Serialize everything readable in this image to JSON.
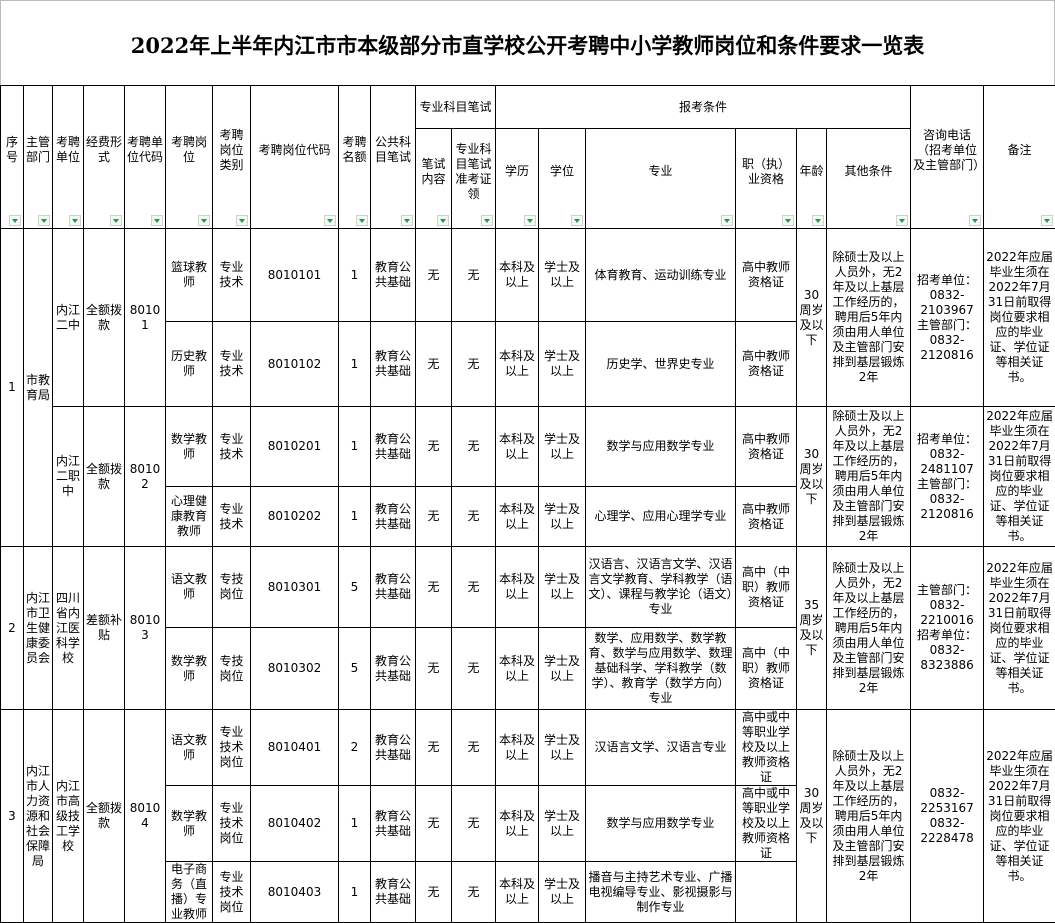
{
  "title": "2022年上半年内江市市本级部分市直学校公开考聘中小学教师岗位和条件要求一览表",
  "headers": {
    "seq": "序号",
    "dept": "主管部门",
    "unit": "考聘单位",
    "funding": "经费形式",
    "unit_code": "考聘单位代码",
    "position": "考聘岗位",
    "category": "考聘岗位类别",
    "position_code": "考聘岗位代码",
    "count": "考聘名额",
    "public_exam": "公共科目笔试",
    "prof_exam": "专业科目笔试",
    "exam_content": "笔试内容",
    "admission": "专业科目笔试准考证领",
    "conditions": "报考条件",
    "education": "学历",
    "degree": "学位",
    "major": "专业",
    "qualification": "职（执）业资格",
    "age": "年龄",
    "other": "其他条件",
    "phone": "咨询电话（招考单位及主管部门）",
    "note": "备注"
  },
  "filter_icon": "dropdown-filter-triangle",
  "accent_color": "#1a9c4a",
  "groups": [
    {
      "seq": "1",
      "dept": "市教育局",
      "units": [
        {
          "unit": "内江二中",
          "funding": "全额拨款",
          "code": "80101",
          "age": "30周岁及以下",
          "other": "除硕士及以上人员外，无2年及以上基层工作经历的，聘用后5年内须由用人单位及主管部门安排到基层锻炼2年",
          "phone": "招考单位：\n0832-\n2103967\n主管部门：\n0832-\n2120816",
          "note": "2022年应届毕业生须在2022年7月31日前取得岗位要求相应的毕业证、学位证等相关证书。",
          "positions": [
            {
              "name": "篮球教师",
              "category": "专业技术",
              "code": "8010101",
              "count": "1",
              "public_exam": "教育公共基础",
              "exam_content": "无",
              "admission": "无",
              "education": "本科及以上",
              "degree": "学士及以上",
              "major": "体育教育、运动训练专业",
              "qualification": "高中教师资格证"
            },
            {
              "name": "历史教师",
              "category": "专业技术",
              "code": "8010102",
              "count": "1",
              "public_exam": "教育公共基础",
              "exam_content": "无",
              "admission": "无",
              "education": "本科及以上",
              "degree": "学士及以上",
              "major": "历史学、世界史专业",
              "qualification": "高中教师资格证"
            }
          ]
        },
        {
          "unit": "内江二职中",
          "funding": "全额拨款",
          "code": "80102",
          "age": "30周岁及以下",
          "other": "除硕士及以上人员外，无2年及以上基层工作经历的，聘用后5年内须由用人单位及主管部门安排到基层锻炼2年",
          "phone": "招考单位：\n0832-\n2481107\n主管部门：\n0832-\n2120816",
          "note": "2022年应届毕业生须在2022年7月31日前取得岗位要求相应的毕业证、学位证等相关证书。",
          "positions": [
            {
              "name": "数学教师",
              "category": "专业技术",
              "code": "8010201",
              "count": "1",
              "public_exam": "教育公共基础",
              "exam_content": "无",
              "admission": "无",
              "education": "本科及以上",
              "degree": "学士及以上",
              "major": "数学与应用数学专业",
              "qualification": "高中教师资格证"
            },
            {
              "name": "心理健康教育教师",
              "category": "专业技术",
              "code": "8010202",
              "count": "1",
              "public_exam": "教育公共基础",
              "exam_content": "无",
              "admission": "无",
              "education": "本科及以上",
              "degree": "学士及以上",
              "major": "心理学、应用心理学专业",
              "qualification": "高中教师资格证"
            }
          ]
        }
      ]
    },
    {
      "seq": "2",
      "dept": "内江市卫生健康委员会",
      "units": [
        {
          "unit": "四川省内江医科学校",
          "funding": "差额补贴",
          "code": "80103",
          "age": "35周岁及以下",
          "other": "除硕士及以上人员外，无2年及以上基层工作经历的，聘用后5年内须由用人单位及主管部门安排到基层锻炼2年",
          "phone": "主管部门：\n0832-\n2210016\n招考单位：\n0832-\n8323886",
          "note": "2022年应届毕业生须在2022年7月31日前取得岗位要求相应的毕业证、学位证等相关证书。",
          "positions": [
            {
              "name": "语文教师",
              "category": "专技岗位",
              "code": "8010301",
              "count": "5",
              "public_exam": "教育公共基础",
              "exam_content": "无",
              "admission": "无",
              "education": "本科及以上",
              "degree": "学士及以上",
              "major": "汉语言、汉语言文学、汉语言文学教育、学科教学（语文）、课程与教学论（语文）专业",
              "qualification": "高中（中职）教师资格证"
            },
            {
              "name": "数学教师",
              "category": "专技岗位",
              "code": "8010302",
              "count": "5",
              "public_exam": "教育公共基础",
              "exam_content": "无",
              "admission": "无",
              "education": "本科及以上",
              "degree": "学士及以上",
              "major": "数学、应用数学、数学教育、数学与应用数学、数理基础科学、学科教学（数学）、教育学（数学方向）专业",
              "qualification": "高中（中职）教师资格证"
            }
          ]
        }
      ]
    },
    {
      "seq": "3",
      "dept": "内江市人力资源和社会保障局",
      "units": [
        {
          "unit": "内江市高级技工学校",
          "funding": "全额拨款",
          "code": "80104",
          "age": "30周岁及以下",
          "other": "除硕士及以上人员外，无2年及以上基层工作经历的，聘用后5年内须由用人单位及主管部门安排到基层锻炼2年",
          "phone": "0832-\n2253167\n0832-\n2228478",
          "note": "2022年应届毕业生须在2022年7月31日前取得岗位要求相应的毕业证、学位证等相关证书。",
          "positions": [
            {
              "name": "语文教师",
              "category": "专业技术岗位",
              "code": "8010401",
              "count": "2",
              "public_exam": "教育公共基础",
              "exam_content": "无",
              "admission": "无",
              "education": "本科及以上",
              "degree": "学士及以上",
              "major": "汉语言文学、汉语言专业",
              "qualification": "高中或中等职业学校及以上教师资格证"
            },
            {
              "name": "数学教师",
              "category": "专业技术岗位",
              "code": "8010402",
              "count": "1",
              "public_exam": "教育公共基础",
              "exam_content": "无",
              "admission": "无",
              "education": "本科及以上",
              "degree": "学士及以上",
              "major": "数学与应用数学专业",
              "qualification": "高中或中等职业学校及以上教师资格证"
            },
            {
              "name": "电子商务（直播）专业教师",
              "category": "专业技术岗位",
              "code": "8010403",
              "count": "1",
              "public_exam": "教育公共基础",
              "exam_content": "无",
              "admission": "无",
              "education": "本科及以上",
              "degree": "学士及以上",
              "major": "播音与主持艺术专业、广播电视编导专业、影视摄影与制作专业",
              "qualification": ""
            }
          ]
        }
      ]
    }
  ]
}
